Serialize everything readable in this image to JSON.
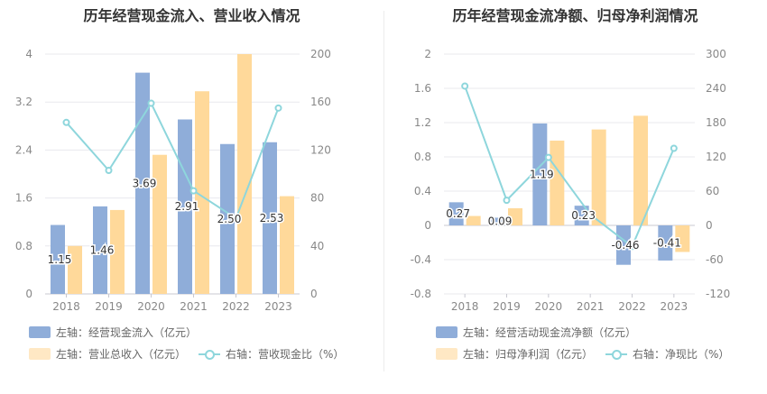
{
  "chart_data": [
    {
      "type": "bar",
      "title": "历年经营现金流入、营业收入情况",
      "categories": [
        "2018",
        "2019",
        "2020",
        "2021",
        "2022",
        "2023"
      ],
      "left_axis": {
        "min": 0,
        "max": 4,
        "ticks": [
          "0",
          "0.8",
          "1.6",
          "2.4",
          "3.2",
          "4"
        ]
      },
      "right_axis": {
        "min": 0,
        "max": 200,
        "ticks": [
          "0",
          "40",
          "80",
          "120",
          "160",
          "200"
        ]
      },
      "series": [
        {
          "name": "左轴：经营现金流入（亿元）",
          "kind": "bar",
          "axis": "left",
          "color": "#8fadd9",
          "values": [
            1.15,
            1.46,
            3.69,
            2.91,
            2.5,
            2.53
          ],
          "labels": [
            "1.15",
            "1.46",
            "3.69",
            "2.91",
            "2.50",
            "2.53"
          ]
        },
        {
          "name": "左轴：营业总收入（亿元）",
          "kind": "bar",
          "axis": "left",
          "color": "#ffd99a",
          "values": [
            0.8,
            1.4,
            2.32,
            3.38,
            4.0,
            1.63
          ]
        },
        {
          "name": "右轴：营收现金比（%）",
          "kind": "line",
          "axis": "right",
          "color": "#8ed6dc",
          "values": [
            143,
            103,
            159,
            86,
            63,
            155
          ]
        }
      ],
      "legend": "bottom"
    },
    {
      "type": "bar",
      "title": "历年经营现金流净额、归母净利润情况",
      "categories": [
        "2018",
        "2019",
        "2020",
        "2021",
        "2022",
        "2023"
      ],
      "left_axis": {
        "min": -0.8,
        "max": 2,
        "ticks": [
          "-0.8",
          "-0.4",
          "0",
          "0.4",
          "0.8",
          "1.2",
          "1.6",
          "2"
        ]
      },
      "right_axis": {
        "min": -120,
        "max": 300,
        "ticks": [
          "-120",
          "-60",
          "0",
          "60",
          "120",
          "180",
          "240",
          "300"
        ]
      },
      "series": [
        {
          "name": "左轴：经营活动现金流净额（亿元）",
          "kind": "bar",
          "axis": "left",
          "color": "#8fadd9",
          "values": [
            0.27,
            0.09,
            1.19,
            0.23,
            -0.46,
            -0.41
          ],
          "labels": [
            "0.27",
            "0.09",
            "1.19",
            "0.23",
            "-0.46",
            "-0.41"
          ]
        },
        {
          "name": "左轴：归母净利润（亿元）",
          "kind": "bar",
          "axis": "left",
          "color": "#ffd99a",
          "values": [
            0.11,
            0.2,
            0.99,
            1.12,
            1.28,
            -0.31
          ]
        },
        {
          "name": "右轴：净现比（%）",
          "kind": "line",
          "axis": "right",
          "color": "#8ed6dc",
          "values": [
            244,
            44,
            119,
            19,
            -37,
            135
          ]
        }
      ],
      "legend": "bottom"
    }
  ]
}
